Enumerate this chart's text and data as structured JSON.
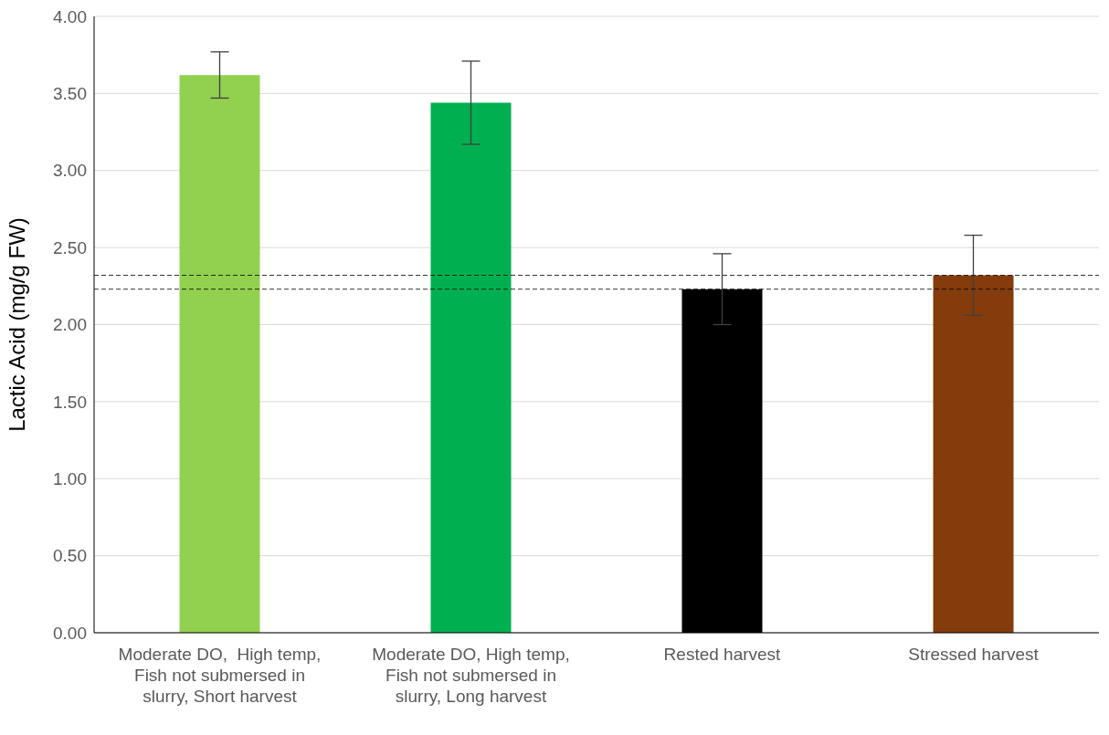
{
  "chart_data": {
    "type": "bar",
    "ylabel": "Lactic Acid (mg/g FW)",
    "categories": [
      "Moderate DO,  High temp, Fish not submersed in slurry, Short harvest",
      "Moderate DO, High temp, Fish not submersed in slurry, Long harvest",
      "Rested harvest",
      "Stressed harvest"
    ],
    "values": [
      3.62,
      3.44,
      2.23,
      2.32
    ],
    "errors": [
      0.15,
      0.27,
      0.23,
      0.26
    ],
    "colors": [
      "#92d050",
      "#00b050",
      "#000000",
      "#843c0c"
    ],
    "ylim": [
      0,
      4
    ],
    "yticks": [
      {
        "value": 0,
        "label": "0.00"
      },
      {
        "value": 0.5,
        "label": "0.50"
      },
      {
        "value": 1,
        "label": "1.00"
      },
      {
        "value": 1.5,
        "label": "1.50"
      },
      {
        "value": 2,
        "label": "2.00"
      },
      {
        "value": 2.5,
        "label": "2.50"
      },
      {
        "value": 3,
        "label": "3.00"
      },
      {
        "value": 3.5,
        "label": "3.50"
      },
      {
        "value": 4,
        "label": "4.00"
      }
    ],
    "grid": "y",
    "ref_lines": [
      {
        "axis": "y",
        "value": 2.32,
        "color": "#000000",
        "line_style": "dashed"
      },
      {
        "axis": "y",
        "value": 2.23,
        "color": "#000000",
        "line_style": "dashed"
      }
    ]
  }
}
